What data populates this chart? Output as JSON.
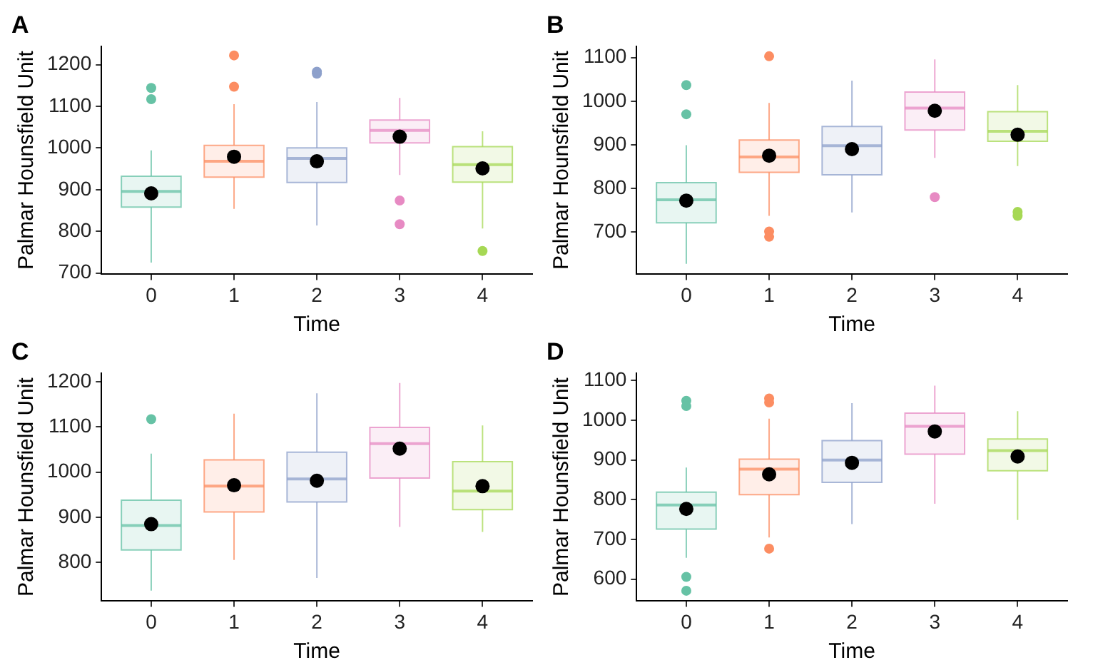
{
  "chart_data": [
    {
      "type": "box",
      "title": "A",
      "xlabel": "Time",
      "ylabel": "Palmar Hounsfield Unit",
      "categories": [
        "0",
        "1",
        "2",
        "3",
        "4"
      ],
      "colors": [
        "#66c2a5",
        "#fc8d62",
        "#8da0cb",
        "#e78ac3",
        "#a6d854"
      ],
      "ylim": [
        697,
        1244
      ],
      "yticks": [
        700,
        800,
        900,
        1000,
        1100,
        1200
      ],
      "grid": false,
      "legend": false,
      "boxes": [
        {
          "low": 725,
          "q1": 858,
          "median": 896,
          "q3": 932,
          "high": 994,
          "mean": 891,
          "outliers": [
            1144,
            1117
          ]
        },
        {
          "low": 854,
          "q1": 930,
          "median": 968,
          "q3": 1006,
          "high": 1105,
          "mean": 979,
          "outliers": [
            1222,
            1147
          ]
        },
        {
          "low": 814,
          "q1": 917,
          "median": 975,
          "q3": 1000,
          "high": 1110,
          "mean": 968,
          "outliers": [
            1183,
            1178
          ]
        },
        {
          "low": 935,
          "q1": 1012,
          "median": 1042,
          "q3": 1067,
          "high": 1120,
          "mean": 1027,
          "outliers": [
            874,
            817
          ]
        },
        {
          "low": 807,
          "q1": 918,
          "median": 960,
          "q3": 1003,
          "high": 1040,
          "mean": 951,
          "outliers": [
            753
          ]
        }
      ]
    },
    {
      "type": "box",
      "title": "B",
      "xlabel": "Time",
      "ylabel": "Palmar Hounsfield Unit",
      "categories": [
        "0",
        "1",
        "2",
        "3",
        "4"
      ],
      "colors": [
        "#66c2a5",
        "#fc8d62",
        "#8da0cb",
        "#e78ac3",
        "#a6d854"
      ],
      "ylim": [
        603,
        1126
      ],
      "yticks": [
        700,
        800,
        900,
        1000,
        1100
      ],
      "grid": false,
      "legend": false,
      "boxes": [
        {
          "low": 627,
          "q1": 721,
          "median": 774,
          "q3": 813,
          "high": 899,
          "mean": 772,
          "outliers": [
            1037,
            970
          ]
        },
        {
          "low": 737,
          "q1": 837,
          "median": 872,
          "q3": 911,
          "high": 996,
          "mean": 875,
          "outliers": [
            1103,
            701,
            689
          ]
        },
        {
          "low": 745,
          "q1": 831,
          "median": 898,
          "q3": 942,
          "high": 1047,
          "mean": 890
        },
        {
          "low": 870,
          "q1": 934,
          "median": 984,
          "q3": 1021,
          "high": 1096,
          "mean": 978,
          "outliers": [
            780
          ]
        },
        {
          "low": 851,
          "q1": 908,
          "median": 931,
          "q3": 976,
          "high": 1037,
          "mean": 923,
          "outliers": [
            746,
            737
          ]
        }
      ]
    },
    {
      "type": "box",
      "title": "C",
      "xlabel": "Time",
      "ylabel": "Palmar Hounsfield Unit",
      "categories": [
        "0",
        "1",
        "2",
        "3",
        "4"
      ],
      "colors": [
        "#66c2a5",
        "#fc8d62",
        "#8da0cb",
        "#e78ac3",
        "#a6d854"
      ],
      "ylim": [
        715,
        1219
      ],
      "yticks": [
        800,
        900,
        1000,
        1100,
        1200
      ],
      "grid": false,
      "legend": false,
      "boxes": [
        {
          "low": 738,
          "q1": 828,
          "median": 882,
          "q3": 938,
          "high": 1041,
          "mean": 885,
          "outliers": [
            1117
          ]
        },
        {
          "low": 806,
          "q1": 912,
          "median": 969,
          "q3": 1027,
          "high": 1129,
          "mean": 971
        },
        {
          "low": 766,
          "q1": 934,
          "median": 985,
          "q3": 1044,
          "high": 1174,
          "mean": 981
        },
        {
          "low": 879,
          "q1": 987,
          "median": 1063,
          "q3": 1099,
          "high": 1197,
          "mean": 1052
        },
        {
          "low": 868,
          "q1": 917,
          "median": 958,
          "q3": 1023,
          "high": 1103,
          "mean": 969
        }
      ]
    },
    {
      "type": "box",
      "title": "D",
      "xlabel": "Time",
      "ylabel": "Palmar Hounsfield Unit",
      "categories": [
        "0",
        "1",
        "2",
        "3",
        "4"
      ],
      "colors": [
        "#66c2a5",
        "#fc8d62",
        "#8da0cb",
        "#e78ac3",
        "#a6d854"
      ],
      "ylim": [
        545,
        1119
      ],
      "yticks": [
        600,
        700,
        800,
        900,
        1000,
        1100
      ],
      "grid": false,
      "legend": false,
      "boxes": [
        {
          "low": 654,
          "q1": 726,
          "median": 787,
          "q3": 819,
          "high": 881,
          "mean": 777,
          "outliers": [
            1049,
            1036,
            606,
            571
          ]
        },
        {
          "low": 705,
          "q1": 813,
          "median": 877,
          "q3": 902,
          "high": 1004,
          "mean": 864,
          "outliers": [
            1055,
            1045,
            677
          ]
        },
        {
          "low": 739,
          "q1": 844,
          "median": 900,
          "q3": 949,
          "high": 1043,
          "mean": 893
        },
        {
          "low": 790,
          "q1": 915,
          "median": 985,
          "q3": 1018,
          "high": 1087,
          "mean": 972
        },
        {
          "low": 749,
          "q1": 873,
          "median": 924,
          "q3": 953,
          "high": 1023,
          "mean": 909
        }
      ]
    }
  ]
}
